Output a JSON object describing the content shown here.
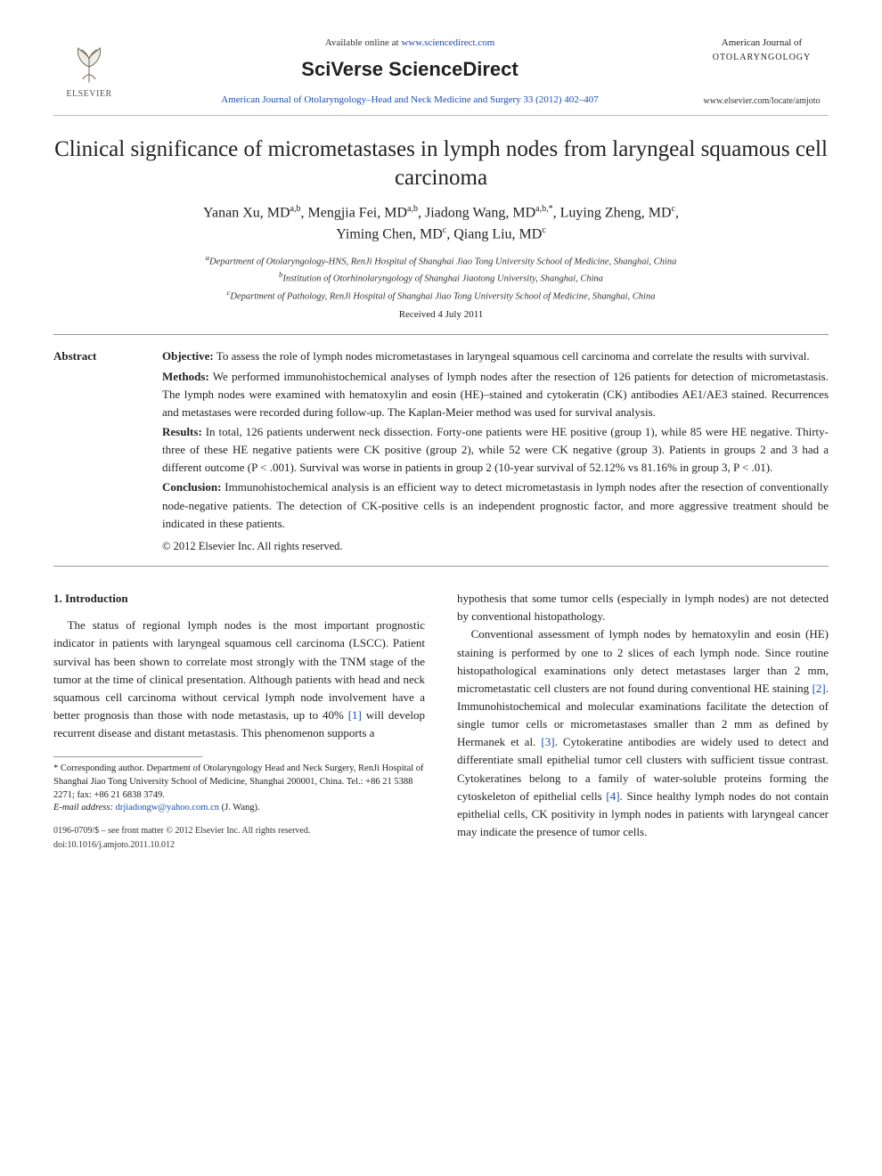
{
  "header": {
    "elsevier_label": "ELSEVIER",
    "available_prefix": "Available online at ",
    "available_url": "www.sciencedirect.com",
    "sciverse": "SciVerse ScienceDirect",
    "journal_ref": "American Journal of Otolaryngology–Head and Neck Medicine and Surgery 33 (2012) 402–407",
    "journal_name_1": "American Journal of",
    "journal_name_2": "OTOLARYNGOLOGY",
    "journal_site": "www.elsevier.com/locate/amjoto"
  },
  "title": "Clinical significance of micrometastases in lymph nodes from laryngeal squamous cell carcinoma",
  "authors_html": "Yanan Xu, MD<sup>a,b</sup>, Mengjia Fei, MD<sup>a,b</sup>, Jiadong Wang, MD<sup>a,b,*</sup>, Luying Zheng, MD<sup>c</sup>,<br>Yiming Chen, MD<sup>c</sup>, Qiang Liu, MD<sup>c</sup>",
  "affiliations": {
    "a": "Department of Otolaryngology-HNS, RenJi Hospital of Shanghai Jiao Tong University School of Medicine, Shanghai, China",
    "b": "Institution of Otorhinolaryngology of Shanghai Jiaotong University, Shanghai, China",
    "c": "Department of Pathology, RenJi Hospital of Shanghai Jiao Tong University School of Medicine, Shanghai, China"
  },
  "received": "Received 4 July 2011",
  "abstract": {
    "label": "Abstract",
    "objective_lead": "Objective:",
    "objective": " To assess the role of lymph nodes micrometastases in laryngeal squamous cell carcinoma and correlate the results with survival.",
    "methods_lead": "Methods:",
    "methods": " We performed immunohistochemical analyses of lymph nodes after the resection of 126 patients for detection of micrometastasis. The lymph nodes were examined with hematoxylin and eosin (HE)–stained and cytokeratin (CK) antibodies AE1/AE3 stained. Recurrences and metastases were recorded during follow-up. The Kaplan-Meier method was used for survival analysis.",
    "results_lead": "Results:",
    "results": " In total, 126 patients underwent neck dissection. Forty-one patients were HE positive (group 1), while 85 were HE negative. Thirty-three of these HE negative patients were CK positive (group 2), while 52 were CK negative (group 3). Patients in groups 2 and 3 had a different outcome (P < .001). Survival was worse in patients in group 2 (10-year survival of 52.12% vs 81.16% in group 3, P < .01).",
    "conclusion_lead": "Conclusion:",
    "conclusion": " Immunohistochemical analysis is an efficient way to detect micrometastasis in lymph nodes after the resection of conventionally node-negative patients. The detection of CK-positive cells is an independent prognostic factor, and more aggressive treatment should be indicated in these patients.",
    "copyright": "© 2012 Elsevier Inc. All rights reserved."
  },
  "intro": {
    "heading": "1. Introduction",
    "p1": "The status of regional lymph nodes is the most important prognostic indicator in patients with laryngeal squamous cell carcinoma (LSCC). Patient survival has been shown to correlate most strongly with the TNM stage of the tumor at the time of clinical presentation. Although patients with head and neck squamous cell carcinoma without cervical lymph node involvement have a better prognosis than those with node metastasis, up to 40% ",
    "ref1": "[1]",
    "p1b": " will develop recurrent disease and distant metastasis. This phenomenon supports a",
    "p2a": "hypothesis that some tumor cells (especially in lymph nodes) are not detected by conventional histopathology.",
    "p3": "Conventional assessment of lymph nodes by hematoxylin and eosin (HE) staining is performed by one to 2 slices of each lymph node. Since routine histopathological examinations only detect metastases larger than 2 mm, micrometastatic cell clusters are not found during conventional HE staining ",
    "ref2": "[2]",
    "p3b": ". Immunohistochemical and molecular examinations facilitate the detection of single tumor cells or micrometastases smaller than 2 mm as defined by Hermanek et al. ",
    "ref3": "[3]",
    "p3c": ". Cytokeratine antibodies are widely used to detect and differentiate small epithelial tumor cell clusters with sufficient tissue contrast. Cytokeratines belong to a family of water-soluble proteins forming the cytoskeleton of epithelial cells ",
    "ref4": "[4]",
    "p3d": ". Since healthy lymph nodes do not contain epithelial cells, CK positivity in lymph nodes in patients with laryngeal cancer may indicate the presence of tumor cells."
  },
  "footnotes": {
    "corr": "* Corresponding author. Department of Otolaryngology Head and Neck Surgery, RenJi Hospital of Shanghai Jiao Tong University School of Medicine, Shanghai 200001, China. Tel.: +86 21 5388 2271; fax: +86 21 6838 3749.",
    "email_label": "E-mail address: ",
    "email": "drjiadongw@yahoo.com.cn",
    "email_tail": " (J. Wang)."
  },
  "bottom": {
    "line1": "0196-0709/$ – see front matter © 2012 Elsevier Inc. All rights reserved.",
    "line2": "doi:10.1016/j.amjoto.2011.10.012"
  },
  "colors": {
    "link": "#1a4db3",
    "text": "#222222",
    "rule": "#999999"
  }
}
